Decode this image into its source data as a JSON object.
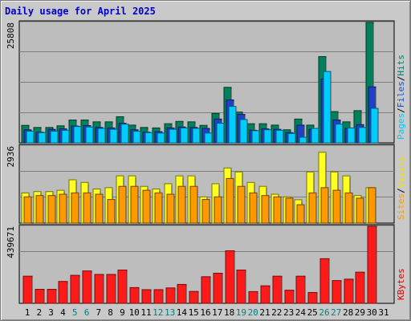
{
  "chart_data": {
    "type": "bar",
    "title": "Daily usage for April 2025",
    "x": [
      1,
      2,
      3,
      4,
      5,
      6,
      7,
      8,
      9,
      10,
      11,
      12,
      13,
      14,
      15,
      16,
      17,
      18,
      19,
      20,
      21,
      22,
      23,
      24,
      25,
      26,
      27,
      28,
      29,
      30,
      31
    ],
    "x_label_colors": [
      "#000000",
      "#000000",
      "#000000",
      "#000000",
      "#008080",
      "#008080",
      "#000000",
      "#000000",
      "#000000",
      "#000000",
      "#000000",
      "#008080",
      "#008080",
      "#000000",
      "#000000",
      "#000000",
      "#000000",
      "#000000",
      "#008080",
      "#008080",
      "#000000",
      "#000000",
      "#000000",
      "#000000",
      "#000000",
      "#008080",
      "#008080",
      "#000000",
      "#000000",
      "#000000",
      "#000000"
    ],
    "panels": [
      {
        "ymax_label": "25808",
        "ymax": 25808,
        "legend": [
          "Pages",
          "/",
          "Files",
          "/",
          "Hits"
        ],
        "legend_colors": [
          "#00c8ff",
          "#000000",
          "#1a4fd6",
          "#000000",
          "#008070"
        ],
        "series": [
          {
            "name": "Hits",
            "color": "#00805c",
            "values": [
              3750,
              3300,
              3300,
              3650,
              4900,
              4900,
              4500,
              4500,
              5600,
              3800,
              3300,
              3200,
              4100,
              4600,
              4500,
              3750,
              6300,
              11900,
              6600,
              4100,
              4100,
              3800,
              2800,
              5100,
              3800,
              18500,
              6700,
              4500,
              6900,
              25808,
              null
            ]
          },
          {
            "name": "Files",
            "color": "#2040c8",
            "values": [
              2800,
              2300,
              2900,
              3000,
              3600,
              3700,
              3300,
              3200,
              4200,
              2800,
              2300,
              2400,
              3200,
              3400,
              3300,
              3100,
              5100,
              9200,
              6100,
              2700,
              3000,
              2900,
              2200,
              3800,
              2900,
              13700,
              4900,
              3100,
              3900,
              12000,
              null
            ]
          },
          {
            "name": "Pages",
            "color": "#00ccff",
            "values": [
              2500,
              2200,
              2500,
              2700,
              3500,
              3400,
              3100,
              2900,
              4000,
              2500,
              2200,
              2100,
              2900,
              3200,
              3100,
              2100,
              4200,
              7800,
              5000,
              2600,
              2800,
              2700,
              2000,
              1200,
              3100,
              15300,
              4000,
              3200,
              3300,
              7400,
              null
            ]
          }
        ]
      },
      {
        "ymax_label": "2936",
        "ymax": 2936,
        "legend": [
          "Sites",
          "/",
          "Visits"
        ],
        "legend_colors": [
          "#ff9a00",
          "#000000",
          "#f0e010"
        ],
        "series": [
          {
            "name": "Visits",
            "color": "#ffff20",
            "values": [
              1150,
              1200,
              1200,
              1250,
              1650,
              1550,
              1300,
              1350,
              1800,
              1800,
              1400,
              1300,
              1500,
              1800,
              1800,
              1000,
              1500,
              2100,
              1950,
              1550,
              1400,
              1100,
              1000,
              890,
              1950,
              2700,
              1950,
              1800,
              1050,
              1350,
              null
            ]
          },
          {
            "name": "Sites",
            "color": "#ff9900",
            "values": [
              1000,
              1050,
              1050,
              1100,
              1150,
              1150,
              1100,
              900,
              1400,
              1400,
              1250,
              1150,
              1100,
              1400,
              1400,
              900,
              1000,
              1700,
              1400,
              1150,
              1050,
              1000,
              950,
              700,
              1150,
              1350,
              1250,
              1150,
              950,
              1350,
              null
            ]
          }
        ]
      },
      {
        "ymax_label": "439671",
        "ymax": 439671,
        "legend": [
          "KBytes"
        ],
        "legend_colors": [
          "#e00000"
        ],
        "series": [
          {
            "name": "KBytes",
            "color": "#ff1a1a",
            "values": [
              155000,
              80000,
              80000,
              125000,
              160000,
              185000,
              165000,
              165000,
              190000,
              90000,
              78000,
              78000,
              88000,
              108000,
              68000,
              152000,
              172000,
              300000,
              190000,
              67000,
              100000,
              155000,
              75000,
              155000,
              62000,
              255000,
              130000,
              138000,
              178000,
              439671,
              null
            ]
          }
        ]
      }
    ],
    "xlabel": "",
    "ylabel": "",
    "grid": true
  }
}
